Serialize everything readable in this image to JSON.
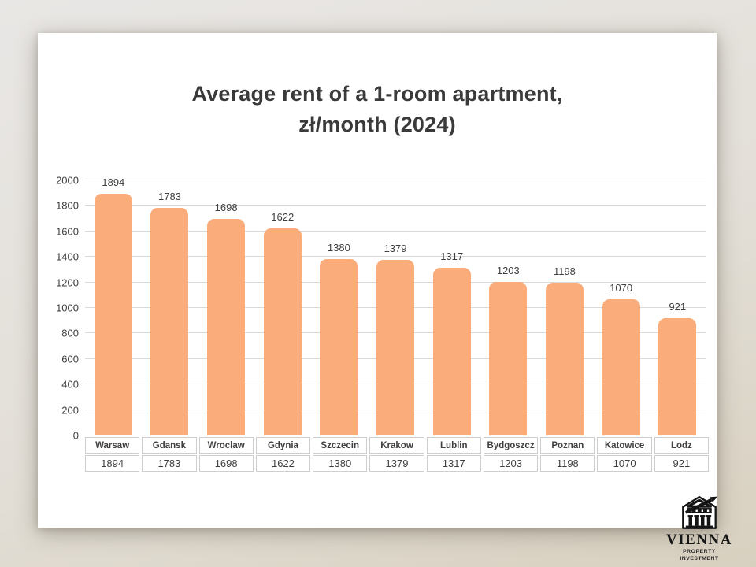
{
  "title": {
    "line1": "Average rent of a 1-room apartment,",
    "line2": "zł/month (2024)"
  },
  "chart_data": {
    "type": "bar",
    "title": "Average rent of a 1-room apartment, zł/month (2024)",
    "categories": [
      "Warsaw",
      "Gdansk",
      "Wroclaw",
      "Gdynia",
      "Szczecin",
      "Krakow",
      "Lublin",
      "Bydgoszcz",
      "Poznan",
      "Katowice",
      "Lodz"
    ],
    "values": [
      1894,
      1783,
      1698,
      1622,
      1380,
      1379,
      1317,
      1203,
      1198,
      1070,
      921
    ],
    "xlabel": "",
    "ylabel": "",
    "ylim": [
      0,
      2000
    ],
    "ytick_step": 200,
    "grid": true,
    "legend": "none",
    "data_labels_shown": true,
    "data_table_shown": true,
    "bar_color": "#FAAC7B"
  },
  "branding": {
    "icon": "bank-building-growth-arrow-icon",
    "name": "VIENNA",
    "tagline": "PROPERTY INVESTMENT"
  },
  "colors": {
    "bar": "#FAAC7B",
    "gridline": "#D9D9D9",
    "axis_text": "#3F3F3F",
    "title_text": "#3A3A3A",
    "table_border": "#CFCDCD",
    "slide_background": "#FFFFFF",
    "page_background_top": "#E9E7E5",
    "page_background_bottom": "#D8D0BF"
  }
}
